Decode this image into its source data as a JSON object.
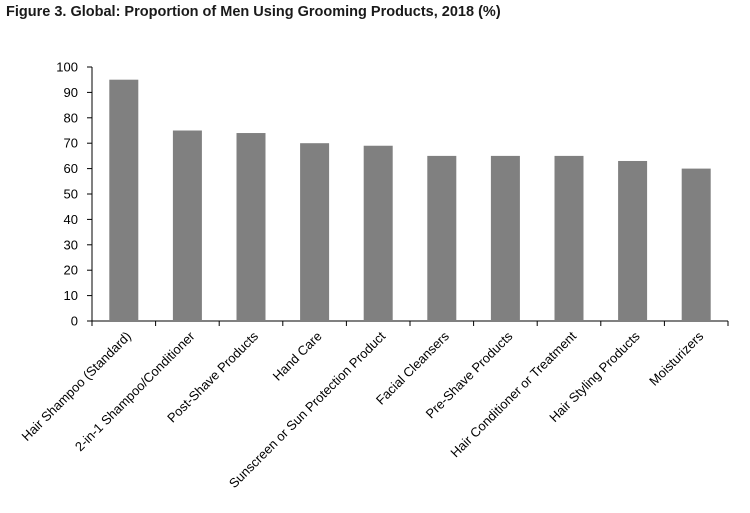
{
  "chart_data": {
    "type": "bar",
    "title": "Figure 3. Global: Proportion of Men Using Grooming Products, 2018 (%)",
    "xlabel": "",
    "ylabel": "",
    "ylim": [
      0,
      100
    ],
    "yticks": [
      0,
      10,
      20,
      30,
      40,
      50,
      60,
      70,
      80,
      90,
      100
    ],
    "grid": false,
    "legend": "none",
    "bar_color": "#808080",
    "categories": [
      "Hair Shampoo (Standard)",
      "2-in-1 Shampoo/Conditioner",
      "Post-Shave Products",
      "Hand Care",
      "Sunscreen or Sun Protection Product",
      "Facial Cleansers",
      "Pre-Shave Products",
      "Hair Conditioner or Treatment",
      "Hair Styling Products",
      "Moisturizers"
    ],
    "values": [
      95,
      75,
      74,
      70,
      69,
      65,
      65,
      65,
      63,
      60
    ]
  }
}
